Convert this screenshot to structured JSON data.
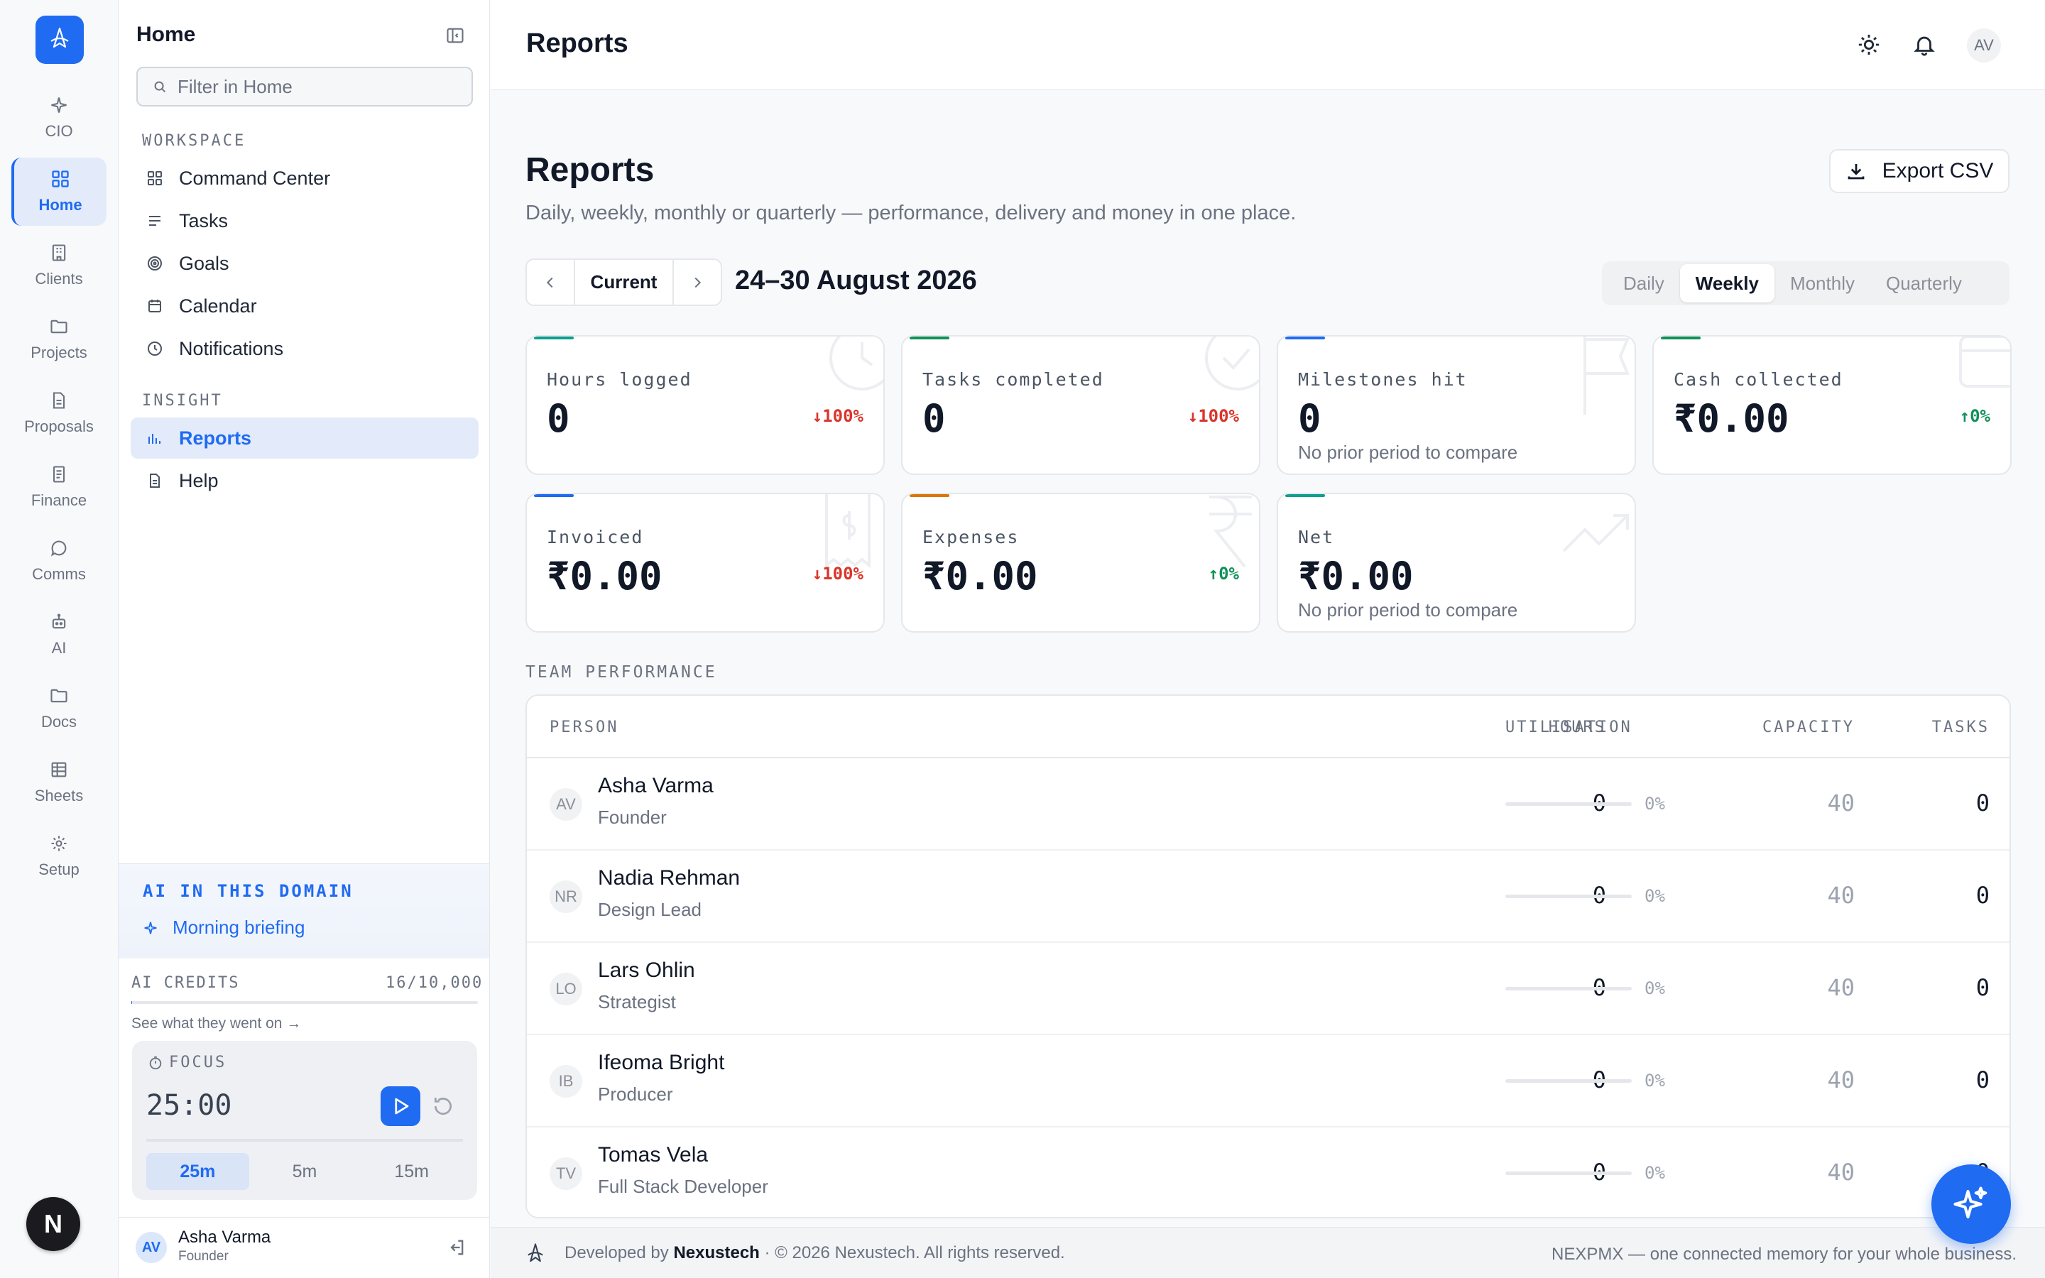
{
  "rail": {
    "items": [
      {
        "label": "CIO",
        "icon": "sparkle-icon"
      },
      {
        "label": "Home",
        "icon": "grid-icon"
      },
      {
        "label": "Clients",
        "icon": "building-icon"
      },
      {
        "label": "Projects",
        "icon": "folder-icon"
      },
      {
        "label": "Proposals",
        "icon": "document-icon"
      },
      {
        "label": "Finance",
        "icon": "receipt-icon"
      },
      {
        "label": "Comms",
        "icon": "chat-icon"
      },
      {
        "label": "AI",
        "icon": "robot-icon"
      },
      {
        "label": "Docs",
        "icon": "folder-icon"
      },
      {
        "label": "Sheets",
        "icon": "table-icon"
      },
      {
        "label": "Setup",
        "icon": "gear-icon"
      }
    ],
    "badge": "N"
  },
  "sidebar": {
    "title": "Home",
    "filter_placeholder": "Filter in Home",
    "workspace_label": "WORKSPACE",
    "workspace_items": [
      {
        "label": "Command Center",
        "icon": "grid-icon"
      },
      {
        "label": "Tasks",
        "icon": "list-icon"
      },
      {
        "label": "Goals",
        "icon": "target-icon"
      },
      {
        "label": "Calendar",
        "icon": "calendar-icon"
      },
      {
        "label": "Notifications",
        "icon": "clock-icon"
      }
    ],
    "insight_label": "INSIGHT",
    "insight_items": [
      {
        "label": "Reports",
        "icon": "bar-chart-icon"
      },
      {
        "label": "Help",
        "icon": "document-icon"
      }
    ],
    "ai_domain": {
      "title": "AI IN THIS DOMAIN",
      "link": "Morning briefing"
    },
    "credits": {
      "label": "AI CREDITS",
      "value": "16/10,000",
      "used_fraction": 0.0016,
      "link": "See what they went on →"
    },
    "focus": {
      "label": "FOCUS",
      "time": "25:00",
      "presets": [
        "25m",
        "5m",
        "15m"
      ],
      "active_preset": "25m"
    },
    "user": {
      "initials": "AV",
      "name": "Asha Varma",
      "role": "Founder"
    }
  },
  "topbar": {
    "title": "Reports",
    "avatar": "AV"
  },
  "page": {
    "title": "Reports",
    "subtitle": "Daily, weekly, monthly or quarterly — performance, delivery and money in one place.",
    "export_label": "Export CSV",
    "period_current": "Current",
    "range": "24–30 August 2026",
    "periods": [
      "Daily",
      "Weekly",
      "Monthly",
      "Quarterly"
    ],
    "active_period": "Weekly"
  },
  "kpis": [
    {
      "label": "Hours logged",
      "value": "0",
      "delta": "100%",
      "dir": "down",
      "accent": "#0e9f8e"
    },
    {
      "label": "Tasks completed",
      "value": "0",
      "delta": "100%",
      "dir": "down",
      "accent": "#12915a"
    },
    {
      "label": "Milestones hit",
      "value": "0",
      "note": "No prior period to compare",
      "accent": "#1f6bf2"
    },
    {
      "label": "Cash collected",
      "value": "₹0.00",
      "delta": "0%",
      "dir": "up",
      "accent": "#12915a"
    },
    {
      "label": "Invoiced",
      "value": "₹0.00",
      "delta": "100%",
      "dir": "down",
      "accent": "#1f6bf2"
    },
    {
      "label": "Expenses",
      "value": "₹0.00",
      "delta": "0%",
      "dir": "up",
      "accent": "#d97706"
    },
    {
      "label": "Net",
      "value": "₹0.00",
      "note": "No prior period to compare",
      "accent": "#0e9f8e"
    }
  ],
  "team": {
    "label": "TEAM PERFORMANCE",
    "columns": [
      "PERSON",
      "HOURS",
      "CAPACITY",
      "UTILISATION",
      "TASKS"
    ],
    "rows": [
      {
        "initials": "AV",
        "name": "Asha Varma",
        "role": "Founder",
        "hours": "0",
        "capacity": "40",
        "utilisation": "0%",
        "tasks": "0"
      },
      {
        "initials": "NR",
        "name": "Nadia Rehman",
        "role": "Design Lead",
        "hours": "0",
        "capacity": "40",
        "utilisation": "0%",
        "tasks": "0"
      },
      {
        "initials": "LO",
        "name": "Lars Ohlin",
        "role": "Strategist",
        "hours": "0",
        "capacity": "40",
        "utilisation": "0%",
        "tasks": "0"
      },
      {
        "initials": "IB",
        "name": "Ifeoma Bright",
        "role": "Producer",
        "hours": "0",
        "capacity": "40",
        "utilisation": "0%",
        "tasks": "0"
      },
      {
        "initials": "TV",
        "name": "Tomas Vela",
        "role": "Full Stack Developer",
        "hours": "0",
        "capacity": "40",
        "utilisation": "0%",
        "tasks": "0"
      }
    ]
  },
  "footer": {
    "developed_by": "Developed by",
    "company": "Nexustech",
    "copyright": "· © 2026 Nexustech. All rights reserved.",
    "tagline": "NEXPMX — one connected memory for your whole business."
  },
  "colors": {
    "accent": "#1f6bf2",
    "down": "#d9352b",
    "up": "#12915a"
  }
}
